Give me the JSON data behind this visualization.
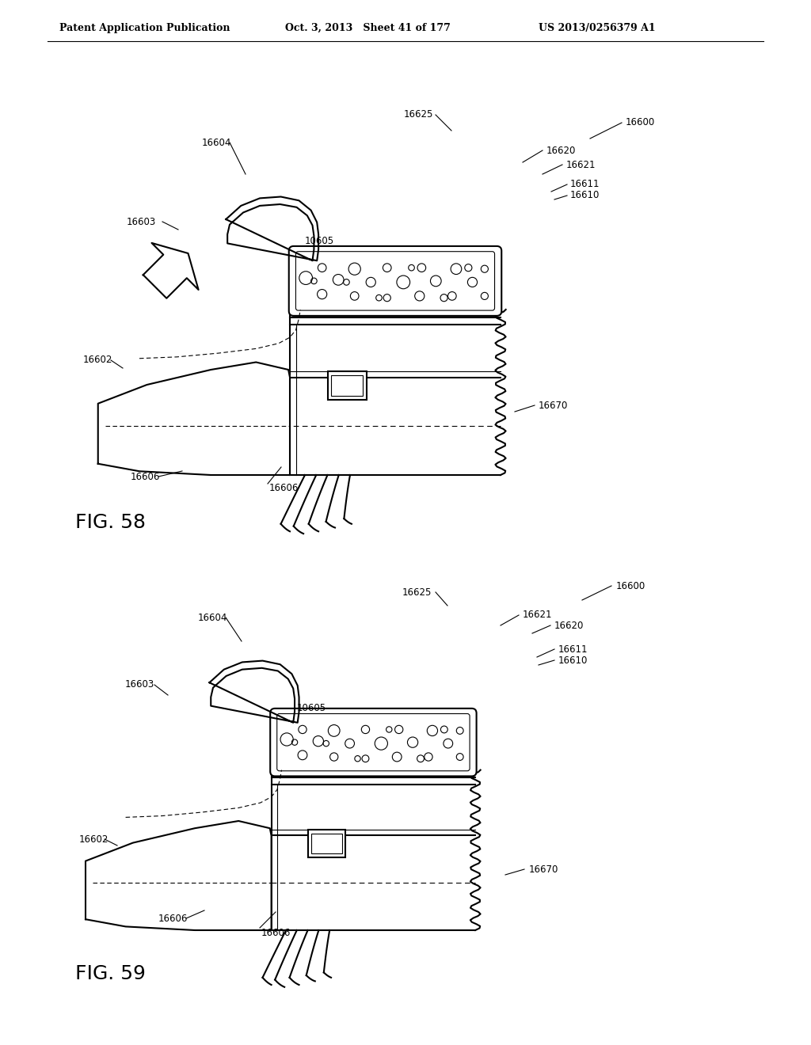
{
  "background_color": "#ffffff",
  "header_left": "Patent Application Publication",
  "header_middle": "Oct. 3, 2013   Sheet 41 of 177",
  "header_right": "US 2013/0256379 A1",
  "fig58_label": "FIG. 58",
  "fig59_label": "FIG. 59",
  "line_color": "#000000",
  "lw_main": 1.5,
  "lw_thin": 0.8,
  "label_fontsize": 8.5,
  "header_fontsize": 9,
  "fig_label_fontsize": 18
}
